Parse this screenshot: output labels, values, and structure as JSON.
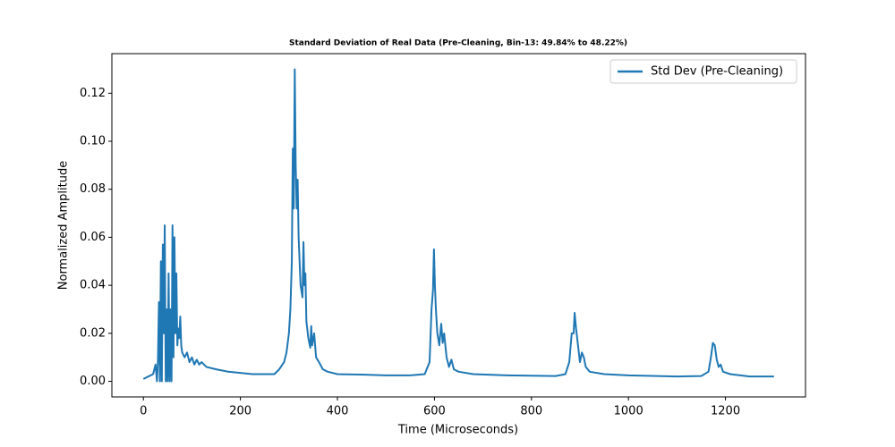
{
  "chart_data": {
    "type": "line",
    "title": "Standard Deviation of Real Data (Pre-Cleaning, Bin-13: 49.84% to 48.22%)",
    "x_label": "Time (Microseconds)",
    "y_label": "Normalized Amplitude",
    "x": [
      0,
      10,
      20,
      25,
      28,
      30,
      32,
      34,
      36,
      38,
      40,
      42,
      44,
      46,
      48,
      50,
      52,
      54,
      56,
      58,
      60,
      62,
      64,
      66,
      68,
      70,
      72,
      74,
      76,
      78,
      80,
      85,
      90,
      95,
      100,
      105,
      110,
      115,
      120,
      130,
      150,
      175,
      200,
      225,
      250,
      270,
      280,
      290,
      295,
      300,
      303,
      306,
      308,
      310,
      312,
      314,
      316,
      318,
      320,
      324,
      328,
      330,
      332,
      334,
      336,
      340,
      344,
      346,
      348,
      352,
      356,
      362,
      370,
      380,
      400,
      450,
      500,
      550,
      580,
      590,
      594,
      597,
      599,
      601,
      603,
      606,
      610,
      614,
      617,
      620,
      625,
      630,
      635,
      640,
      650,
      680,
      750,
      850,
      870,
      878,
      883,
      887,
      889,
      892,
      896,
      900,
      904,
      908,
      912,
      920,
      950,
      1000,
      1100,
      1150,
      1165,
      1170,
      1174,
      1178,
      1182,
      1186,
      1190,
      1195,
      1210,
      1250,
      1300
    ],
    "series": [
      {
        "name": "Std Dev (Pre-Cleaning)",
        "color": "#1f77b4",
        "values": [
          0.001,
          0.002,
          0.003,
          0.007,
          0.0,
          0.009,
          0.033,
          0.0,
          0.05,
          0.0,
          0.057,
          0.02,
          0.065,
          0.0,
          0.03,
          0.0,
          0.045,
          0.0,
          0.03,
          0.0,
          0.065,
          0.01,
          0.06,
          0.02,
          0.045,
          0.015,
          0.022,
          0.018,
          0.027,
          0.015,
          0.012,
          0.01,
          0.012,
          0.008,
          0.01,
          0.007,
          0.009,
          0.007,
          0.008,
          0.006,
          0.005,
          0.004,
          0.0035,
          0.003,
          0.003,
          0.003,
          0.005,
          0.008,
          0.012,
          0.02,
          0.03,
          0.05,
          0.097,
          0.072,
          0.13,
          0.09,
          0.072,
          0.084,
          0.06,
          0.04,
          0.035,
          0.058,
          0.04,
          0.045,
          0.025,
          0.018,
          0.014,
          0.023,
          0.015,
          0.02,
          0.01,
          0.008,
          0.005,
          0.004,
          0.003,
          0.0028,
          0.0025,
          0.0025,
          0.003,
          0.008,
          0.03,
          0.038,
          0.055,
          0.04,
          0.03,
          0.02,
          0.015,
          0.024,
          0.016,
          0.02,
          0.01,
          0.006,
          0.009,
          0.005,
          0.004,
          0.003,
          0.0025,
          0.0022,
          0.003,
          0.008,
          0.02,
          0.02,
          0.0285,
          0.022,
          0.015,
          0.008,
          0.012,
          0.01,
          0.006,
          0.004,
          0.003,
          0.0025,
          0.002,
          0.0022,
          0.004,
          0.01,
          0.016,
          0.015,
          0.009,
          0.006,
          0.007,
          0.004,
          0.003,
          0.002,
          0.002
        ]
      }
    ],
    "xlim": [
      -65,
      1365
    ],
    "ylim": [
      -0.0065,
      0.1365
    ],
    "xticks": [
      0,
      200,
      400,
      600,
      800,
      1000,
      1200
    ],
    "yticks": [
      {
        "value": 0,
        "label": "0.00"
      },
      {
        "value": 0.02,
        "label": "0.02"
      },
      {
        "value": 0.04,
        "label": "0.04"
      },
      {
        "value": 0.06,
        "label": "0.06"
      },
      {
        "value": 0.08,
        "label": "0.08"
      },
      {
        "value": 0.1,
        "label": "0.10"
      },
      {
        "value": 0.12,
        "label": "0.12"
      }
    ],
    "legend": "upper right"
  }
}
